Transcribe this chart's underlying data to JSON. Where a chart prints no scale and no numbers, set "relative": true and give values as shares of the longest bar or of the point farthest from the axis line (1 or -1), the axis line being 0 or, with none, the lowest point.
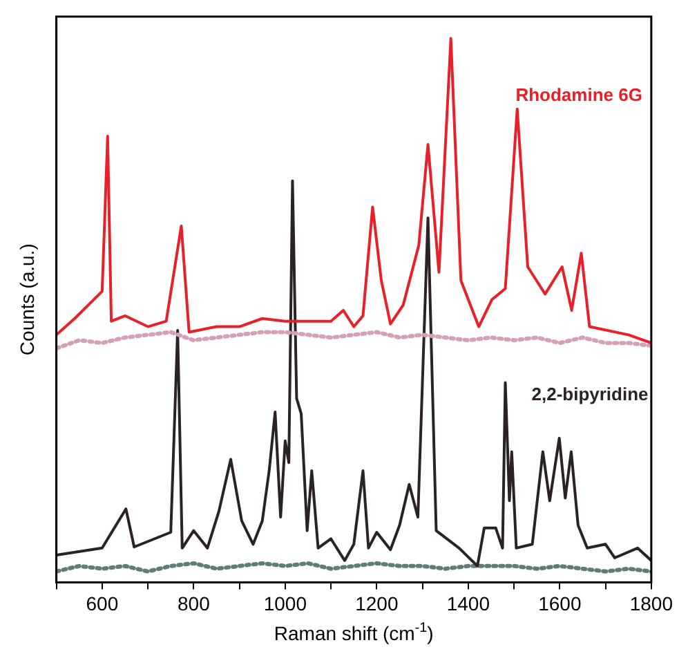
{
  "chart_data": {
    "type": "line",
    "relative": true,
    "xlabel": "Raman shift (cm$^{-1}$)",
    "ylabel": "Counts (a.u.)",
    "xlim": [
      500,
      1800
    ],
    "xticks": [
      {
        "value": 500,
        "label": null
      },
      600,
      {
        "value": 700,
        "label": null
      },
      800,
      {
        "value": 900,
        "label": null
      },
      1000,
      {
        "value": 1100,
        "label": null
      },
      1200,
      {
        "value": 1300,
        "label": null
      },
      1400,
      {
        "value": 1500,
        "label": null
      },
      1600,
      {
        "value": 1700,
        "label": null
      },
      1800
    ],
    "grid": false,
    "legend": false,
    "series": [
      {
        "name": "Rhodamine 6G",
        "color": "#e8202a",
        "line_style": "solid",
        "x": [
          500,
          540,
          570,
          600,
          612,
          620,
          650,
          700,
          740,
          773,
          790,
          850,
          900,
          950,
          1000,
          1050,
          1100,
          1127,
          1150,
          1170,
          1191,
          1210,
          1230,
          1258,
          1292,
          1312,
          1336,
          1362,
          1384,
          1423,
          1452,
          1481,
          1507,
          1530,
          1568,
          1605,
          1626,
          1647,
          1665,
          1750,
          1800
        ],
        "values": [
          0.455,
          0.485,
          0.51,
          0.535,
          0.82,
          0.48,
          0.49,
          0.47,
          0.48,
          0.655,
          0.46,
          0.47,
          0.47,
          0.485,
          0.48,
          0.48,
          0.48,
          0.5,
          0.47,
          0.49,
          0.69,
          0.555,
          0.475,
          0.51,
          0.62,
          0.805,
          0.57,
          1.0,
          0.555,
          0.47,
          0.52,
          0.54,
          0.87,
          0.58,
          0.53,
          0.58,
          0.5,
          0.605,
          0.47,
          0.455,
          0.44
        ]
      },
      {
        "color": "#d4a0b8",
        "line_style": "dotted",
        "x": [
          500,
          550,
          600,
          650,
          700,
          750,
          800,
          850,
          900,
          950,
          1000,
          1050,
          1100,
          1150,
          1200,
          1250,
          1300,
          1350,
          1400,
          1450,
          1500,
          1550,
          1600,
          1650,
          1700,
          1750,
          1800
        ],
        "values": [
          0.43,
          0.445,
          0.44,
          0.45,
          0.455,
          0.46,
          0.445,
          0.45,
          0.455,
          0.46,
          0.46,
          0.455,
          0.45,
          0.455,
          0.46,
          0.45,
          0.455,
          0.45,
          0.445,
          0.45,
          0.445,
          0.45,
          0.44,
          0.45,
          0.44,
          0.44,
          0.435
        ]
      },
      {
        "name": "2,2-bipyridine",
        "color": "#2b2222",
        "line_style": "solid",
        "x": [
          500,
          600,
          652,
          670,
          750,
          765,
          775,
          800,
          830,
          855,
          881,
          905,
          930,
          950,
          965,
          978,
          990,
          1000,
          1008,
          1016,
          1025,
          1035,
          1048,
          1058,
          1072,
          1100,
          1130,
          1150,
          1170,
          1182,
          1200,
          1230,
          1250,
          1271,
          1290,
          1312,
          1330,
          1380,
          1420,
          1435,
          1460,
          1475,
          1481,
          1490,
          1495,
          1505,
          1540,
          1563,
          1578,
          1599,
          1612,
          1625,
          1640,
          1660,
          1700,
          1720,
          1770,
          1800
        ],
        "values": [
          0.05,
          0.063,
          0.135,
          0.065,
          0.092,
          0.463,
          0.063,
          0.095,
          0.063,
          0.13,
          0.226,
          0.113,
          0.07,
          0.113,
          0.205,
          0.313,
          0.12,
          0.26,
          0.22,
          0.738,
          0.338,
          0.31,
          0.095,
          0.205,
          0.063,
          0.08,
          0.04,
          0.07,
          0.205,
          0.063,
          0.092,
          0.06,
          0.105,
          0.18,
          0.12,
          0.67,
          0.095,
          0.063,
          0.03,
          0.1,
          0.1,
          0.063,
          0.367,
          0.15,
          0.24,
          0.063,
          0.07,
          0.24,
          0.15,
          0.265,
          0.155,
          0.24,
          0.105,
          0.063,
          0.07,
          0.045,
          0.063,
          0.04
        ]
      },
      {
        "color": "#5f7c78",
        "line_style": "dotted",
        "x": [
          500,
          550,
          600,
          650,
          700,
          750,
          800,
          850,
          900,
          950,
          1000,
          1050,
          1100,
          1150,
          1200,
          1250,
          1300,
          1350,
          1400,
          1450,
          1500,
          1550,
          1600,
          1650,
          1700,
          1750,
          1800
        ],
        "values": [
          0.02,
          0.03,
          0.025,
          0.03,
          0.02,
          0.03,
          0.035,
          0.025,
          0.03,
          0.035,
          0.03,
          0.035,
          0.025,
          0.03,
          0.035,
          0.03,
          0.03,
          0.025,
          0.03,
          0.03,
          0.03,
          0.025,
          0.03,
          0.025,
          0.02,
          0.025,
          0.02
        ]
      }
    ]
  }
}
